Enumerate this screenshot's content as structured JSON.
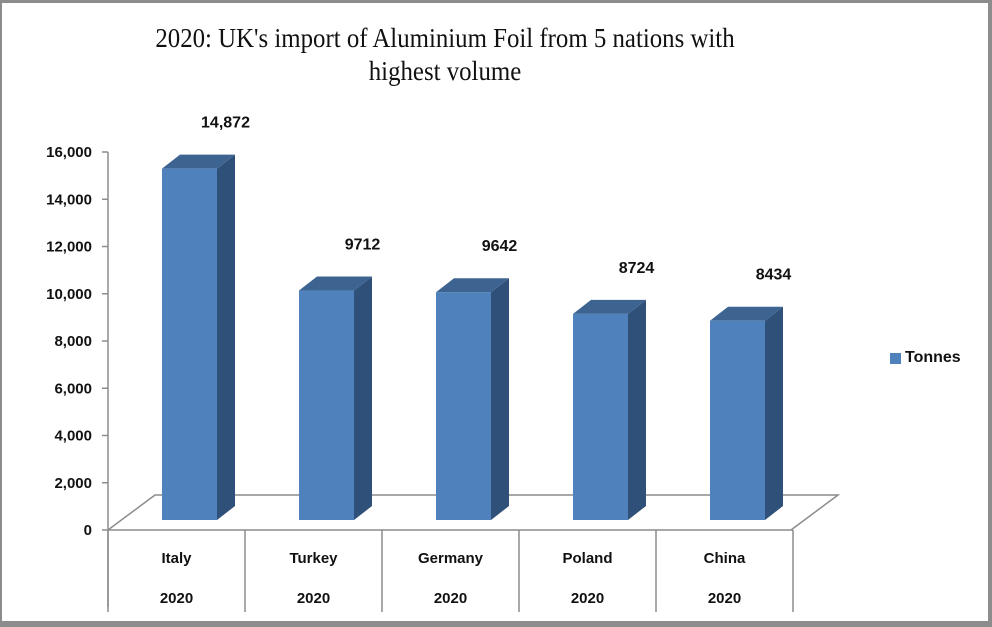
{
  "chart_data": {
    "type": "bar",
    "title": "2020: UK's import of Aluminium Foil from 5 nations with highest volume",
    "title_lines": [
      "2020: UK's import of Aluminium Foil from 5 nations with",
      "highest volume"
    ],
    "categories": [
      "Italy",
      "Turkey",
      "Germany",
      "Poland",
      "China"
    ],
    "category_sublabels": [
      "2020",
      "2020",
      "2020",
      "2020",
      "2020"
    ],
    "series": [
      {
        "name": "Tonnes",
        "color": "#4f81bd",
        "values": [
          14872,
          9712,
          9642,
          8724,
          8434
        ]
      }
    ],
    "data_labels": [
      "14,872",
      "9712",
      "9642",
      "8724",
      "8434"
    ],
    "xlabel": "",
    "ylabel": "",
    "ylim": [
      0,
      16000
    ],
    "yticks": [
      0,
      2000,
      4000,
      6000,
      8000,
      10000,
      12000,
      14000,
      16000
    ],
    "ytick_labels": [
      "0",
      "2,000",
      "4,000",
      "6,000",
      "8,000",
      "10,000",
      "12,000",
      "14,000",
      "16,000"
    ],
    "grid": false,
    "legend_position": "right",
    "style": "3d-column"
  },
  "legend": {
    "label": "Tonnes"
  }
}
